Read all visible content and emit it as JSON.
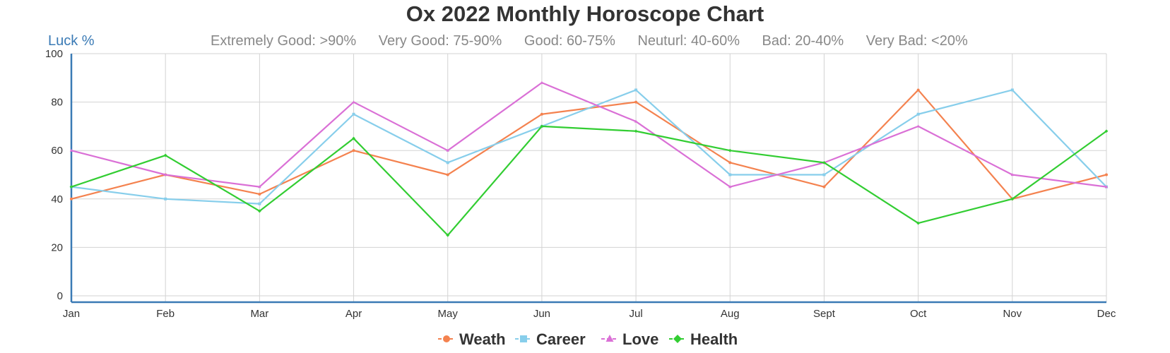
{
  "chart_data": {
    "type": "line",
    "title": "Ox 2022 Monthly Horoscope Chart",
    "ylabel": "Luck %",
    "xlabel": "",
    "ylim": [
      0,
      100
    ],
    "yticks": [
      0,
      20,
      40,
      60,
      80,
      100
    ],
    "grid": true,
    "legend_position": "bottom",
    "ranges": [
      "Extremely Good: >90%",
      "Very Good: 75-90%",
      "Good: 60-75%",
      "Neuturl: 40-60%",
      "Bad: 20-40%",
      "Very Bad: <20%"
    ],
    "categories": [
      "Jan",
      "Feb",
      "Mar",
      "Apr",
      "May",
      "Jun",
      "Jul",
      "Aug",
      "Sept",
      "Oct",
      "Nov",
      "Dec"
    ],
    "series": [
      {
        "name": "Weath",
        "color": "#f4824f",
        "marker": "circle",
        "values": [
          40,
          50,
          42,
          60,
          50,
          75,
          80,
          55,
          45,
          85,
          40,
          50
        ]
      },
      {
        "name": "Career",
        "color": "#87ceeb",
        "marker": "square",
        "values": [
          45,
          40,
          38,
          75,
          55,
          70,
          85,
          50,
          50,
          75,
          85,
          45
        ]
      },
      {
        "name": "Love",
        "color": "#da70d6",
        "marker": "triangle",
        "values": [
          60,
          50,
          45,
          80,
          60,
          88,
          72,
          45,
          55,
          70,
          50,
          45
        ]
      },
      {
        "name": "Health",
        "color": "#32cd32",
        "marker": "diamond",
        "values": [
          45,
          58,
          35,
          65,
          25,
          70,
          68,
          60,
          55,
          30,
          40,
          68
        ]
      }
    ]
  }
}
